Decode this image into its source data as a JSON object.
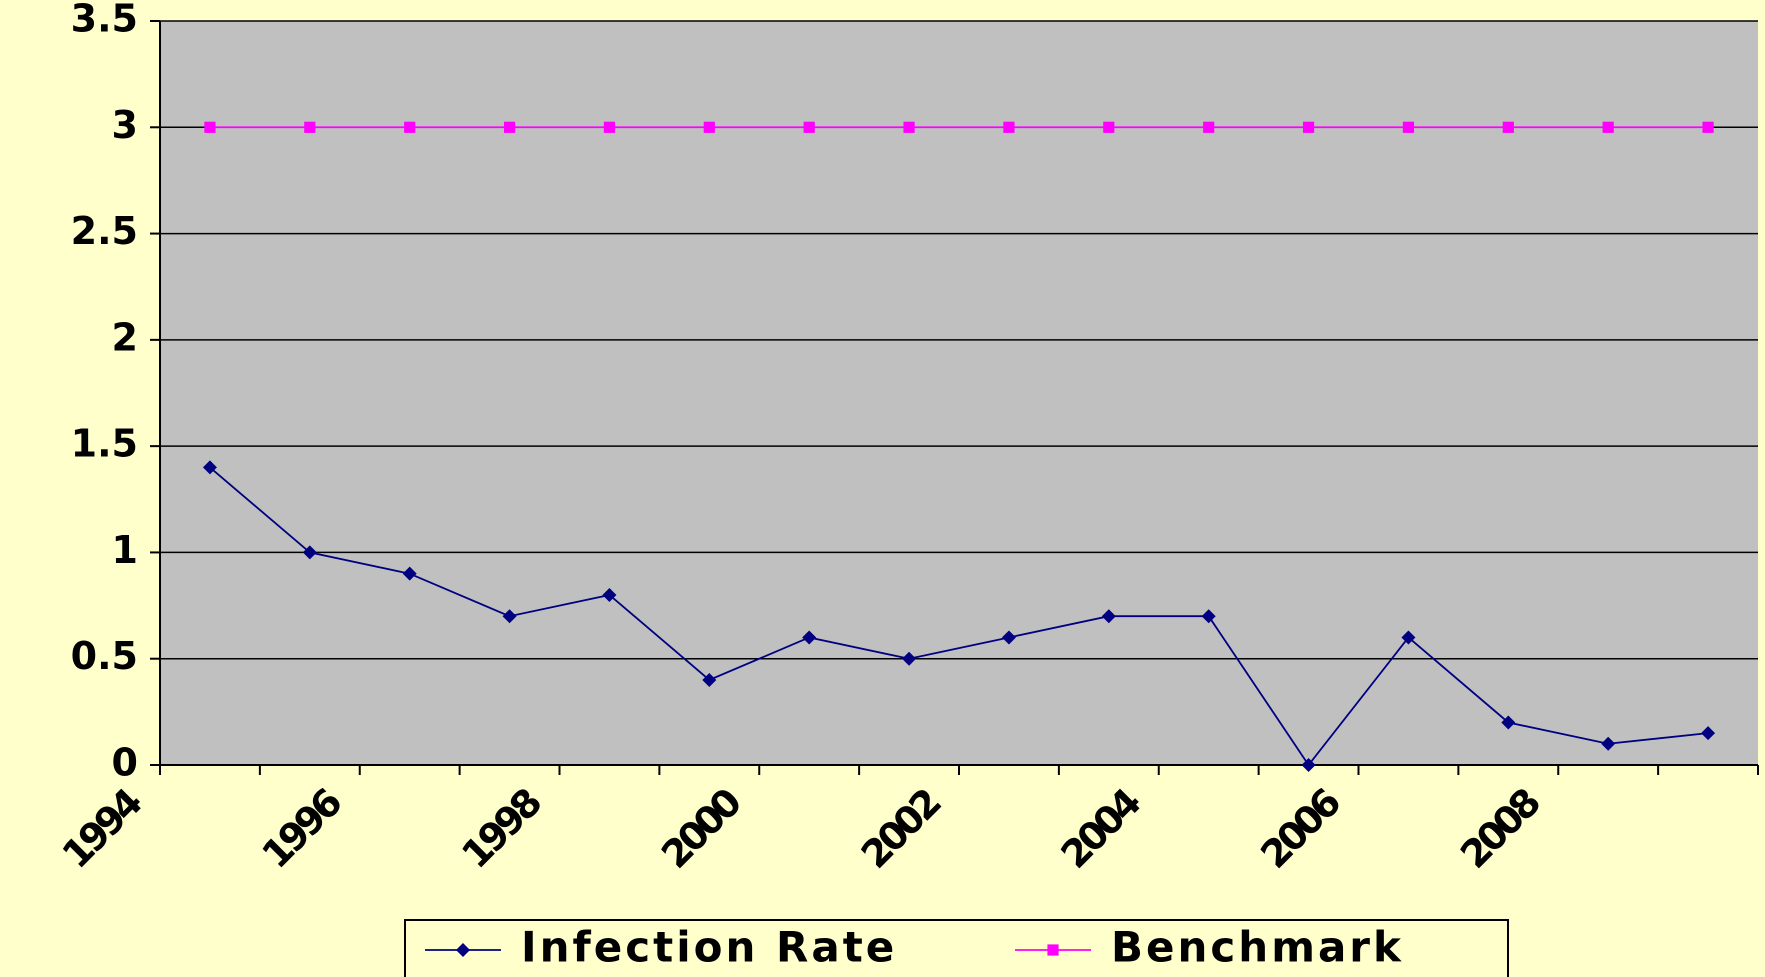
{
  "chart_data": {
    "type": "line",
    "categories": [
      "1994",
      null,
      "1996",
      null,
      "1998",
      null,
      "2000",
      null,
      "2002",
      null,
      "2004",
      null,
      "2006",
      null,
      "2008",
      null
    ],
    "series": [
      {
        "name": "Infection Rate",
        "color": "#000080",
        "marker": "diamond",
        "values": [
          1.4,
          1.0,
          0.9,
          0.7,
          0.8,
          0.4,
          0.6,
          0.5,
          0.6,
          0.7,
          0.7,
          0,
          0.6,
          0.2,
          0.1,
          0.15
        ]
      },
      {
        "name": "Benchmark",
        "color": "#ff00ff",
        "marker": "square",
        "values": [
          3,
          3,
          3,
          3,
          3,
          3,
          3,
          3,
          3,
          3,
          3,
          3,
          3,
          3,
          3,
          3
        ]
      }
    ],
    "ylim": [
      0,
      3.5
    ],
    "yticks": [
      0,
      0.5,
      1,
      1.5,
      2,
      2.5,
      3,
      3.5
    ],
    "grid": true,
    "plot_background": "#c0c0c0",
    "legend": "bottom"
  }
}
